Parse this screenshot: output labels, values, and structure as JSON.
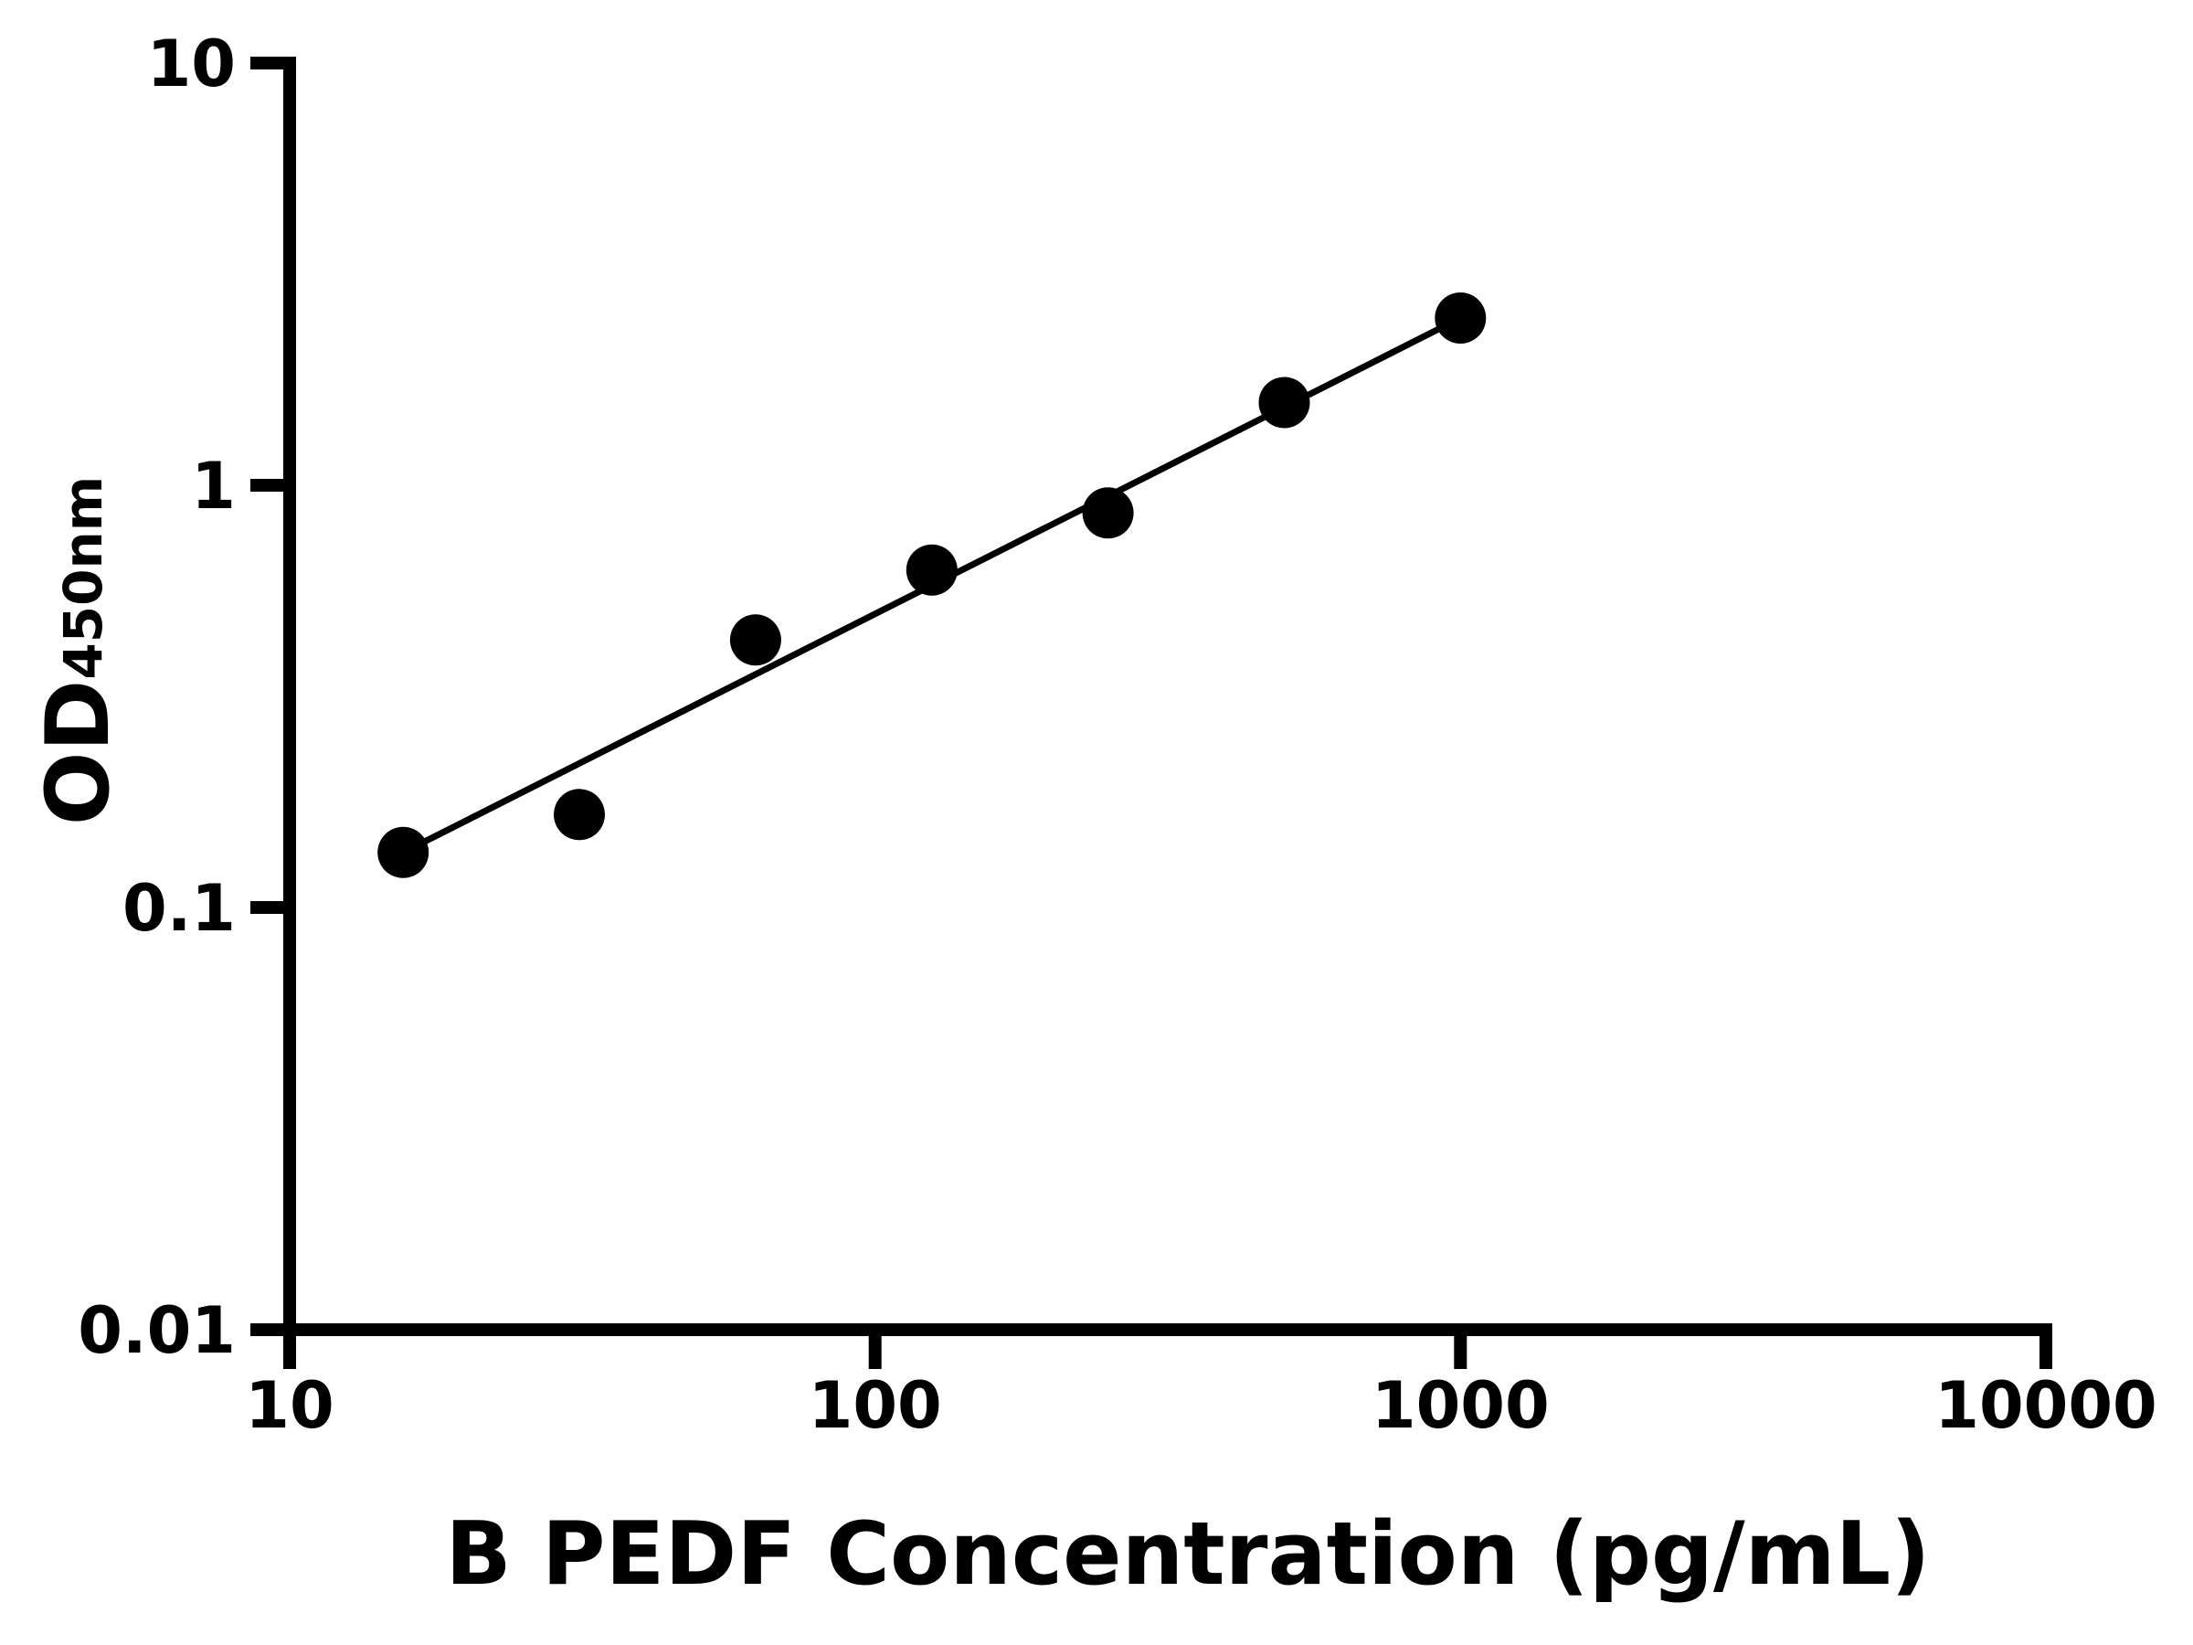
{
  "figure": {
    "background": "#ffffff",
    "foreground": "#000000"
  },
  "chart_data": {
    "type": "scatter",
    "title": "",
    "xlabel": "B PEDF Concentration (pg/mL)",
    "ylabel_main": "OD",
    "ylabel_sub": "450nm",
    "x_scale": "log",
    "y_scale": "log",
    "xlim": [
      10,
      10000
    ],
    "ylim": [
      0.01,
      10
    ],
    "grid": false,
    "legend": "none",
    "x_ticks": [
      {
        "value": 10,
        "label": "10"
      },
      {
        "value": 100,
        "label": "100"
      },
      {
        "value": 1000,
        "label": "1000"
      },
      {
        "value": 10000,
        "label": "10000"
      }
    ],
    "y_ticks": [
      {
        "value": 10,
        "label": "10"
      },
      {
        "value": 1,
        "label": "1"
      },
      {
        "value": 0.1,
        "label": "0.1"
      },
      {
        "value": 0.01,
        "label": "0.01"
      }
    ],
    "series": [
      {
        "name": "standard-curve-points",
        "marker": "circle",
        "color": "#000000",
        "x": [
          15.625,
          31.25,
          62.5,
          125,
          250,
          500,
          1000
        ],
        "y": [
          0.135,
          0.166,
          0.43,
          0.63,
          0.86,
          1.57,
          2.49
        ]
      }
    ],
    "trend_line": {
      "x1": 15.625,
      "y1": 0.135,
      "x2": 1000,
      "y2": 2.49,
      "color": "#000000"
    }
  }
}
